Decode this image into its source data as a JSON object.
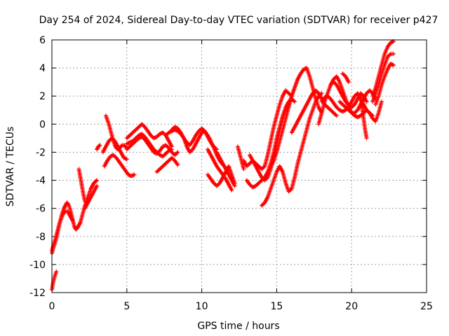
{
  "chart_data": {
    "type": "scatter",
    "title": "Day 254 of 2024, Sidereal Day-to-day VTEC variation (SDTVAR) for receiver p427",
    "xlabel": "GPS time / hours",
    "ylabel": "SDTVAR / TECUs",
    "xlim": [
      0,
      25
    ],
    "ylim": [
      -12,
      6
    ],
    "xticks": [
      "0",
      "5",
      "10",
      "15",
      "20",
      "25"
    ],
    "yticks": [
      "-12",
      "-10",
      "-8",
      "-6",
      "-4",
      "-2",
      "0",
      "2",
      "4",
      "6"
    ],
    "grid": true,
    "marker": "+",
    "color": "#ff0000",
    "series": [
      {
        "x": [
          0.0,
          0.1,
          0.2,
          0.3
        ],
        "y": [
          -11.8,
          -11.2,
          -10.8,
          -10.5
        ]
      },
      {
        "x": [
          0.0,
          0.1,
          0.2,
          0.3,
          0.4,
          0.5,
          0.6,
          0.7,
          0.8,
          0.9,
          1.0,
          1.1,
          1.2,
          1.3,
          1.4,
          1.5,
          1.6,
          1.7,
          1.8,
          1.9,
          2.0,
          2.1,
          2.2,
          2.3,
          2.4,
          2.5,
          2.6,
          2.7,
          2.8,
          2.9,
          3.0
        ],
        "y": [
          -9.2,
          -8.8,
          -8.5,
          -8.1,
          -7.6,
          -7.1,
          -6.7,
          -6.3,
          -6.0,
          -5.8,
          -5.6,
          -5.7,
          -6.0,
          -6.4,
          -6.9,
          -7.3,
          -7.5,
          -7.4,
          -7.2,
          -7.0,
          -6.6,
          -6.2,
          -5.8,
          -5.5,
          -5.2,
          -4.9,
          -4.6,
          -4.4,
          -4.2,
          -4.1,
          -4.0
        ]
      },
      {
        "x": [
          0.0,
          0.1,
          0.2,
          0.3,
          0.4,
          0.5,
          0.6,
          0.7,
          0.8,
          0.9,
          1.0,
          1.1,
          1.2,
          1.3,
          1.4
        ],
        "y": [
          -9.0,
          -8.6,
          -8.3,
          -7.9,
          -7.5,
          -7.1,
          -6.8,
          -6.5,
          -6.3,
          -6.2,
          -6.2,
          -6.3,
          -6.5,
          -6.7,
          -6.9
        ]
      },
      {
        "x": [
          1.8,
          1.9,
          2.0,
          2.1,
          2.2
        ],
        "y": [
          -3.2,
          -3.8,
          -4.4,
          -5.0,
          -5.5
        ]
      },
      {
        "x": [
          2.2,
          2.4,
          2.6,
          2.8,
          3.0
        ],
        "y": [
          -6.0,
          -5.6,
          -5.2,
          -4.8,
          -4.4
        ]
      },
      {
        "x": [
          3.0,
          3.1,
          3.2
        ],
        "y": [
          -1.8,
          -1.6,
          -1.5
        ]
      },
      {
        "x": [
          3.4,
          3.6,
          3.8,
          4.0,
          4.2,
          4.4,
          4.6,
          4.8,
          5.0
        ],
        "y": [
          -2.0,
          -1.6,
          -1.2,
          -1.0,
          -1.2,
          -1.6,
          -2.0,
          -2.4,
          -2.5
        ]
      },
      {
        "x": [
          3.6,
          3.7,
          3.8,
          3.9,
          4.0,
          4.1,
          4.2,
          4.3,
          4.4,
          4.5,
          4.6,
          4.7,
          4.8,
          4.9,
          5.0
        ],
        "y": [
          0.6,
          0.3,
          0.0,
          -0.4,
          -0.8,
          -1.2,
          -1.5,
          -1.7,
          -1.8,
          -1.7,
          -1.6,
          -1.5,
          -1.5,
          -1.6,
          -1.7
        ]
      },
      {
        "x": [
          3.5,
          3.7,
          3.9,
          4.1,
          4.3,
          4.5,
          4.7,
          4.9,
          5.1,
          5.3,
          5.5
        ],
        "y": [
          -3.0,
          -2.6,
          -2.3,
          -2.2,
          -2.4,
          -2.7,
          -3.0,
          -3.3,
          -3.6,
          -3.7,
          -3.6
        ]
      },
      {
        "x": [
          5.0,
          5.2,
          5.4,
          5.6,
          5.8,
          6.0,
          6.2,
          6.4,
          6.6,
          6.8,
          7.0,
          7.2,
          7.4,
          7.6,
          7.8,
          8.0
        ],
        "y": [
          -1.0,
          -0.8,
          -0.6,
          -0.4,
          -0.2,
          0.0,
          -0.2,
          -0.5,
          -0.8,
          -1.0,
          -0.9,
          -0.7,
          -0.6,
          -0.8,
          -1.2,
          -1.6
        ]
      },
      {
        "x": [
          5.0,
          5.2,
          5.4,
          5.6,
          5.8,
          6.0,
          6.2,
          6.4,
          6.6,
          6.8,
          7.0,
          7.2,
          7.4,
          7.6,
          7.8,
          8.0,
          8.2,
          8.4
        ],
        "y": [
          -1.8,
          -1.6,
          -1.4,
          -1.2,
          -1.0,
          -0.9,
          -1.1,
          -1.4,
          -1.7,
          -2.0,
          -2.1,
          -1.9,
          -1.6,
          -1.5,
          -1.7,
          -2.0,
          -2.2,
          -2.0
        ]
      },
      {
        "x": [
          5.0,
          5.2,
          5.4,
          5.6,
          5.8,
          6.0,
          6.2,
          6.4,
          6.6,
          6.8,
          7.0,
          7.2,
          7.4,
          7.6,
          7.8,
          8.0
        ],
        "y": [
          -1.4,
          -1.3,
          -1.2,
          -1.0,
          -0.8,
          -0.7,
          -0.9,
          -1.2,
          -1.5,
          -1.8,
          -2.0,
          -2.2,
          -2.3,
          -2.1,
          -1.9,
          -1.8
        ]
      },
      {
        "x": [
          7.0,
          7.2,
          7.4,
          7.6,
          7.8,
          8.0,
          8.2,
          8.4
        ],
        "y": [
          -3.4,
          -3.2,
          -3.0,
          -2.8,
          -2.6,
          -2.4,
          -2.6,
          -2.9
        ]
      },
      {
        "x": [
          7.6,
          7.8,
          8.0,
          8.2,
          8.4,
          8.6,
          8.8,
          9.0,
          9.2,
          9.4,
          9.6,
          9.8,
          10.0,
          10.2,
          10.4,
          10.6,
          10.8,
          11.0
        ],
        "y": [
          -0.8,
          -0.6,
          -0.5,
          -0.4,
          -0.5,
          -0.7,
          -1.0,
          -1.3,
          -1.5,
          -1.2,
          -0.8,
          -0.5,
          -0.3,
          -0.5,
          -0.9,
          -1.3,
          -1.6,
          -1.8
        ]
      },
      {
        "x": [
          8.0,
          8.2,
          8.4,
          8.6,
          8.8,
          9.0,
          9.2,
          9.4,
          9.6,
          9.8,
          10.0,
          10.2,
          10.4,
          10.6,
          10.8,
          11.0,
          11.2,
          11.4
        ],
        "y": [
          -0.4,
          -0.2,
          -0.3,
          -0.6,
          -1.0,
          -1.6,
          -2.0,
          -1.8,
          -1.4,
          -1.0,
          -0.6,
          -0.5,
          -0.8,
          -1.2,
          -1.7,
          -2.2,
          -2.6,
          -2.9
        ]
      },
      {
        "x": [
          10.4,
          10.6,
          10.8,
          11.0,
          11.2,
          11.4,
          11.6,
          11.8,
          12.0,
          12.2
        ],
        "y": [
          -3.6,
          -3.9,
          -4.2,
          -4.4,
          -4.2,
          -3.8,
          -3.4,
          -3.0,
          -3.6,
          -4.2
        ]
      },
      {
        "x": [
          10.4,
          10.6,
          10.8,
          11.0,
          11.2,
          11.4,
          11.6,
          11.8,
          12.0
        ],
        "y": [
          -1.8,
          -2.2,
          -2.6,
          -3.0,
          -3.3,
          -3.6,
          -3.9,
          -4.3,
          -4.7
        ]
      },
      {
        "x": [
          11.0,
          11.2,
          11.4,
          11.6,
          11.8,
          12.0,
          12.2
        ],
        "y": [
          -2.0,
          -2.4,
          -2.8,
          -3.2,
          -3.6,
          -4.0,
          -4.4
        ]
      },
      {
        "x": [
          12.4,
          12.5,
          12.6,
          12.7,
          12.8
        ],
        "y": [
          -1.6,
          -2.0,
          -2.4,
          -2.8,
          -3.2
        ]
      },
      {
        "x": [
          12.8,
          13.0,
          13.2,
          13.4,
          13.6,
          13.8,
          14.0,
          14.2,
          14.4,
          14.6,
          14.8,
          15.0,
          15.2,
          15.4,
          15.6,
          15.8,
          16.0
        ],
        "y": [
          -2.6,
          -3.0,
          -2.8,
          -2.6,
          -2.8,
          -3.0,
          -3.2,
          -3.0,
          -2.2,
          -1.2,
          -0.2,
          0.6,
          1.4,
          2.0,
          2.4,
          2.2,
          2.0
        ]
      },
      {
        "x": [
          13.0,
          13.2,
          13.4,
          13.6,
          13.8,
          14.0,
          14.2,
          14.4,
          14.6,
          14.8,
          15.0,
          15.2,
          15.4,
          15.6,
          15.8,
          16.0,
          16.2
        ],
        "y": [
          -4.0,
          -4.3,
          -4.5,
          -4.4,
          -4.2,
          -4.0,
          -3.8,
          -3.4,
          -2.8,
          -2.0,
          -1.0,
          -0.2,
          0.6,
          1.2,
          1.6,
          1.8,
          1.6
        ]
      },
      {
        "x": [
          13.2,
          13.4,
          13.6,
          13.8,
          14.0,
          14.2,
          14.4,
          14.6,
          14.8,
          15.0,
          15.2,
          15.4,
          15.6,
          15.8,
          16.0,
          16.2,
          16.4
        ],
        "y": [
          -2.2,
          -2.6,
          -3.0,
          -3.4,
          -3.8,
          -4.0,
          -3.8,
          -3.2,
          -2.4,
          -1.4,
          -0.4,
          0.4,
          1.0,
          1.4,
          2.0,
          2.6,
          3.2
        ]
      },
      {
        "x": [
          14.0,
          14.2,
          14.4,
          14.6,
          14.8,
          15.0,
          15.2,
          15.4,
          15.6,
          15.8,
          16.0,
          16.2,
          16.4,
          16.6,
          16.8,
          17.0,
          17.2,
          17.4,
          17.6,
          17.8,
          18.0
        ],
        "y": [
          -5.8,
          -5.6,
          -5.2,
          -4.6,
          -4.0,
          -3.4,
          -3.0,
          -3.4,
          -4.2,
          -4.8,
          -4.6,
          -3.8,
          -2.8,
          -2.0,
          -1.2,
          -0.4,
          0.4,
          1.0,
          1.6,
          2.0,
          2.2
        ]
      },
      {
        "x": [
          14.6,
          14.8,
          15.0,
          15.2,
          15.4,
          15.6,
          15.8,
          16.0,
          16.2,
          16.4,
          16.6,
          16.8,
          17.0,
          17.2,
          17.4,
          17.6,
          17.8,
          18.0
        ],
        "y": [
          -3.0,
          -2.6,
          -2.0,
          -1.2,
          -0.4,
          0.4,
          1.2,
          2.0,
          2.6,
          3.2,
          3.6,
          3.9,
          4.0,
          3.4,
          2.6,
          1.8,
          1.2,
          0.8
        ]
      },
      {
        "x": [
          16.0,
          16.2,
          16.4,
          16.6,
          16.8,
          17.0,
          17.2,
          17.4,
          17.6,
          17.8,
          18.0,
          18.2,
          18.4,
          18.6,
          18.8,
          19.0
        ],
        "y": [
          -0.6,
          -0.2,
          0.2,
          0.6,
          1.0,
          1.4,
          1.8,
          2.2,
          2.4,
          2.2,
          1.8,
          1.4,
          1.2,
          1.0,
          0.8,
          0.6
        ]
      },
      {
        "x": [
          17.8,
          18.0,
          18.2,
          18.4,
          18.6,
          18.8,
          19.0,
          19.2,
          19.4,
          19.6,
          19.8,
          20.0,
          20.2,
          20.4,
          20.6,
          20.8,
          21.0
        ],
        "y": [
          0.0,
          0.8,
          1.6,
          2.2,
          2.8,
          3.0,
          2.8,
          2.4,
          2.0,
          1.6,
          1.4,
          1.2,
          1.4,
          1.8,
          2.2,
          2.0,
          1.6
        ]
      },
      {
        "x": [
          18.0,
          18.2,
          18.4,
          18.6,
          18.8,
          19.0,
          19.2,
          19.4,
          19.6,
          19.8,
          20.0,
          20.2,
          20.4,
          20.6,
          20.8,
          21.0,
          21.2,
          21.4
        ],
        "y": [
          1.6,
          1.9,
          2.0,
          1.8,
          1.5,
          1.2,
          1.0,
          0.9,
          1.0,
          1.2,
          1.6,
          2.0,
          2.2,
          1.8,
          1.4,
          1.0,
          0.8,
          0.6
        ]
      },
      {
        "x": [
          18.6,
          18.8,
          19.0,
          19.2,
          19.4,
          19.6,
          19.8,
          20.0,
          20.2,
          20.4,
          20.6,
          20.8,
          21.0,
          21.2,
          21.4,
          21.6,
          21.8,
          22.0
        ],
        "y": [
          2.8,
          3.2,
          3.4,
          3.0,
          2.4,
          1.8,
          1.2,
          0.8,
          0.6,
          0.5,
          0.6,
          0.8,
          1.0,
          0.8,
          0.4,
          0.2,
          0.8,
          1.6
        ]
      },
      {
        "x": [
          19.2,
          19.4,
          19.6,
          19.8,
          20.0,
          20.2,
          20.4,
          20.6,
          20.8,
          21.0,
          21.2,
          21.4,
          21.6
        ],
        "y": [
          1.6,
          1.4,
          1.2,
          1.0,
          0.8,
          0.8,
          1.0,
          1.4,
          1.8,
          2.2,
          2.4,
          2.2,
          1.8
        ]
      },
      {
        "x": [
          19.4,
          19.6,
          19.8
        ],
        "y": [
          3.6,
          3.4,
          3.0
        ]
      },
      {
        "x": [
          20.6,
          20.7,
          20.8,
          20.9,
          21.0
        ],
        "y": [
          2.0,
          1.2,
          0.4,
          -0.4,
          -1.0
        ]
      },
      {
        "x": [
          21.4,
          21.6,
          21.8,
          22.0,
          22.2,
          22.4,
          22.6,
          22.8
        ],
        "y": [
          2.0,
          2.6,
          3.4,
          4.2,
          5.0,
          5.5,
          5.8,
          5.9
        ]
      },
      {
        "x": [
          21.4,
          21.6,
          21.8,
          22.0,
          22.2,
          22.4,
          22.6,
          22.8
        ],
        "y": [
          1.6,
          2.2,
          2.8,
          3.6,
          4.2,
          4.8,
          5.0,
          5.0
        ]
      },
      {
        "x": [
          21.6,
          21.8,
          22.0,
          22.2,
          22.4,
          22.6,
          22.8
        ],
        "y": [
          1.4,
          2.0,
          2.8,
          3.4,
          3.9,
          4.3,
          4.2
        ]
      }
    ]
  }
}
